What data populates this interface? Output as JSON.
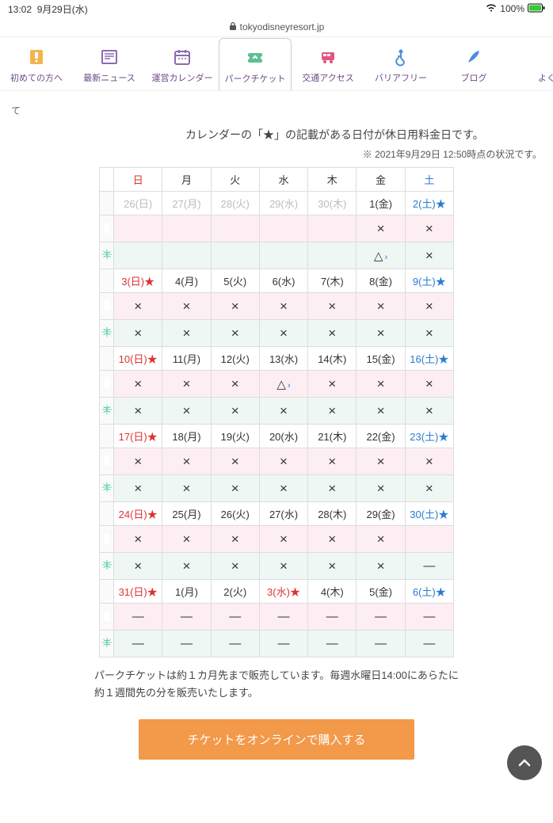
{
  "statusbar": {
    "time": "13:02",
    "date": "9月29日(水)",
    "battery": "100%"
  },
  "url": "tokyodisneyresort.jp",
  "tabs": [
    {
      "key": "first",
      "label": "初めての方へ",
      "color": "#f2b44c"
    },
    {
      "key": "news",
      "label": "最新ニュース",
      "color": "#8b6bb0"
    },
    {
      "key": "calendar",
      "label": "運営カレンダー",
      "color": "#8b6bb0"
    },
    {
      "key": "ticket",
      "label": "パークチケット",
      "color": "#5ec08f",
      "active": true
    },
    {
      "key": "access",
      "label": "交通アクセス",
      "color": "#e0567c"
    },
    {
      "key": "barrier",
      "label": "バリアフリー",
      "color": "#4a8fd8"
    },
    {
      "key": "blog",
      "label": "ブログ",
      "color": "#4a8fd8"
    },
    {
      "key": "more",
      "label": "よく",
      "color": "#4a8fd8"
    }
  ],
  "smallnote": "て",
  "note1": "カレンダーの「★」の記載がある日付が休日用料金日です。",
  "note2": "※ 2021年9月29日 12:50時点の状況です。",
  "dow": [
    "日",
    "月",
    "火",
    "水",
    "木",
    "金",
    "土"
  ],
  "weeks": [
    {
      "days": [
        {
          "t": "26(日)",
          "cls": "d-gray"
        },
        {
          "t": "27(月)",
          "cls": "d-gray"
        },
        {
          "t": "28(火)",
          "cls": "d-gray"
        },
        {
          "t": "29(水)",
          "cls": "d-gray"
        },
        {
          "t": "30(木)",
          "cls": "d-gray"
        },
        {
          "t": "1(金)"
        },
        {
          "t": "2(土)",
          "cls": "d-sat",
          "star": "b"
        }
      ],
      "r1": [
        "",
        "",
        "",
        "",
        "",
        "×",
        "×"
      ],
      "r2": [
        "",
        "",
        "",
        "",
        "",
        "△>",
        "×"
      ]
    },
    {
      "days": [
        {
          "t": "3(日)",
          "cls": "d-sun",
          "star": "r"
        },
        {
          "t": "4(月)"
        },
        {
          "t": "5(火)"
        },
        {
          "t": "6(水)"
        },
        {
          "t": "7(木)"
        },
        {
          "t": "8(金)"
        },
        {
          "t": "9(土)",
          "cls": "d-sat",
          "star": "b"
        }
      ],
      "r1": [
        "×",
        "×",
        "×",
        "×",
        "×",
        "×",
        "×"
      ],
      "r2": [
        "×",
        "×",
        "×",
        "×",
        "×",
        "×",
        "×"
      ]
    },
    {
      "days": [
        {
          "t": "10(日)",
          "cls": "d-sun",
          "star": "r"
        },
        {
          "t": "11(月)"
        },
        {
          "t": "12(火)"
        },
        {
          "t": "13(水)"
        },
        {
          "t": "14(木)"
        },
        {
          "t": "15(金)"
        },
        {
          "t": "16(土)",
          "cls": "d-sat",
          "star": "b"
        }
      ],
      "r1": [
        "×",
        "×",
        "×",
        "△>",
        "×",
        "×",
        "×"
      ],
      "r2": [
        "×",
        "×",
        "×",
        "×",
        "×",
        "×",
        "×"
      ]
    },
    {
      "days": [
        {
          "t": "17(日)",
          "cls": "d-sun",
          "star": "r"
        },
        {
          "t": "18(月)"
        },
        {
          "t": "19(火)"
        },
        {
          "t": "20(水)"
        },
        {
          "t": "21(木)"
        },
        {
          "t": "22(金)"
        },
        {
          "t": "23(土)",
          "cls": "d-sat",
          "star": "b"
        }
      ],
      "r1": [
        "×",
        "×",
        "×",
        "×",
        "×",
        "×",
        "×"
      ],
      "r2": [
        "×",
        "×",
        "×",
        "×",
        "×",
        "×",
        "×"
      ]
    },
    {
      "days": [
        {
          "t": "24(日)",
          "cls": "d-sun",
          "star": "r"
        },
        {
          "t": "25(月)"
        },
        {
          "t": "26(火)"
        },
        {
          "t": "27(水)"
        },
        {
          "t": "28(木)"
        },
        {
          "t": "29(金)"
        },
        {
          "t": "30(土)",
          "cls": "d-sat",
          "star": "b"
        }
      ],
      "r1": [
        "×",
        "×",
        "×",
        "×",
        "×",
        "×",
        ""
      ],
      "r2": [
        "×",
        "×",
        "×",
        "×",
        "×",
        "×",
        "—"
      ]
    },
    {
      "days": [
        {
          "t": "31(日)",
          "cls": "d-sun",
          "star": "r"
        },
        {
          "t": "1(月)"
        },
        {
          "t": "2(火)"
        },
        {
          "t": "3(水)",
          "cls": "d-sun",
          "star": "r"
        },
        {
          "t": "4(木)"
        },
        {
          "t": "5(金)"
        },
        {
          "t": "6(土)",
          "cls": "d-sat",
          "star": "b"
        }
      ],
      "r1": [
        "—",
        "—",
        "—",
        "—",
        "—",
        "—",
        "—"
      ],
      "r2": [
        "—",
        "—",
        "—",
        "—",
        "—",
        "—",
        "—"
      ]
    }
  ],
  "foot1": "パークチケットは約１カ月先まで販売しています。毎週水曜日14:00にあらたに約１週間先の分を販売いたします。",
  "buy": "チケットをオンラインで購入する",
  "colors": {
    "pink": "#e65a9b",
    "green": "#2fb89a",
    "orange": "#f2994a"
  }
}
